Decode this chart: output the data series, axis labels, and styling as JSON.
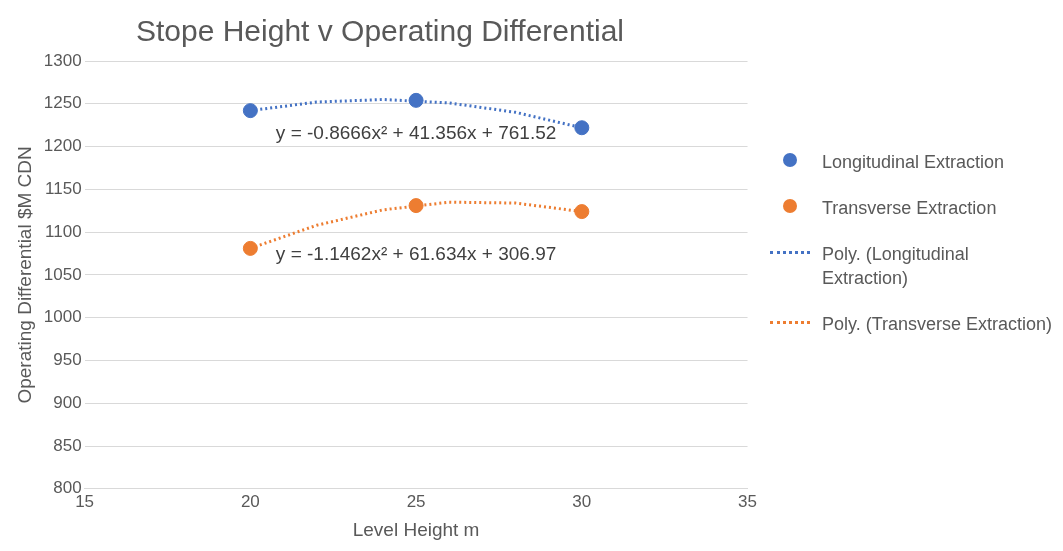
{
  "chart_data": {
    "type": "scatter",
    "title": "Stope Height v Operating Differential",
    "xlabel": "Level Height m",
    "ylabel": "Operating Differential $M CDN",
    "xlim": [
      15,
      35
    ],
    "xticks": [
      15,
      20,
      25,
      30,
      35
    ],
    "ylim": [
      800,
      1300
    ],
    "yticks": [
      800,
      850,
      900,
      950,
      1000,
      1050,
      1100,
      1150,
      1200,
      1250,
      1300
    ],
    "grid": "y",
    "legend": "right",
    "marker": "circle",
    "series": [
      {
        "name": "Longitudinal Extraction",
        "color": "#4472c4",
        "x": [
          20,
          25,
          30
        ],
        "values": [
          1242,
          1254,
          1222
        ]
      },
      {
        "name": "Transverse Extraction",
        "color": "#ed7d31",
        "x": [
          20,
          25,
          30
        ],
        "values": [
          1081,
          1131,
          1124
        ]
      },
      {
        "name": "Poly. (Longitudinal Extraction)",
        "type": "line",
        "line_style": "dotted",
        "marker": "none",
        "color": "#4472c4",
        "x": [
          20,
          22,
          24,
          26,
          28,
          30
        ],
        "values": [
          1242,
          1252,
          1255,
          1251,
          1240,
          1222
        ]
      },
      {
        "name": "Poly. (Transverse Extraction)",
        "type": "line",
        "line_style": "dotted",
        "marker": "none",
        "color": "#ed7d31",
        "x": [
          20,
          22,
          24,
          26,
          28,
          30
        ],
        "values": [
          1081,
          1108,
          1126,
          1135,
          1134,
          1124
        ]
      }
    ],
    "annotations": [
      "y = -0.8666x² + 41.356x + 761.52",
      "y = -1.1462x² + 61.634x + 306.97"
    ]
  }
}
